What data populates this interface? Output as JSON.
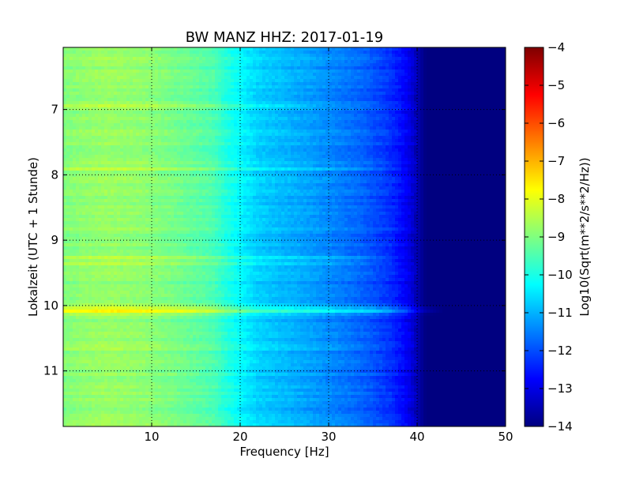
{
  "chart_data": {
    "type": "heatmap",
    "title": "BW MANZ HHZ: 2017-01-19",
    "xlabel": "Frequency [Hz]",
    "ylabel": "Lokalzeit (UTC + 1 Stunde)",
    "colorbar_label": "Log10(Sqrt(m**2/s**2/Hz))",
    "xlim": [
      0,
      50
    ],
    "ylim": [
      6.05,
      11.85
    ],
    "y_inverted": true,
    "x_ticks": [
      10,
      20,
      30,
      40,
      50
    ],
    "x_tick_labels": [
      "10",
      "20",
      "30",
      "40",
      "50"
    ],
    "y_ticks": [
      7,
      8,
      9,
      10,
      11
    ],
    "y_tick_labels": [
      "7",
      "8",
      "9",
      "10",
      "11"
    ],
    "clim": [
      -14,
      -4
    ],
    "colorbar_ticks": [
      -4,
      -5,
      -6,
      -7,
      -8,
      -9,
      -10,
      -11,
      -12,
      -13,
      -14
    ],
    "colorbar_tick_labels": [
      "−4",
      "−5",
      "−6",
      "−7",
      "−8",
      "−9",
      "−10",
      "−11",
      "−12",
      "−13",
      "−14"
    ],
    "colormap": "jet",
    "grid": true,
    "spectrum_profile": {
      "frequency_hz": [
        0,
        2,
        5,
        9,
        12,
        15,
        17,
        18,
        20,
        22,
        25,
        28,
        31,
        34,
        37,
        39,
        40,
        41,
        50
      ],
      "log10_amplitude": [
        -9.0,
        -8.85,
        -8.75,
        -8.85,
        -9.05,
        -9.3,
        -9.5,
        -9.8,
        -10.3,
        -10.7,
        -10.95,
        -11.2,
        -11.5,
        -11.8,
        -12.3,
        -12.9,
        -13.5,
        -14.0,
        -14.0
      ]
    },
    "energy_bursts": [
      {
        "time_h": 10.07,
        "width_h": 0.045,
        "delta": 1.3,
        "fmax_hz": 43
      },
      {
        "time_h": 9.28,
        "width_h": 0.03,
        "delta": 0.6,
        "fmax_hz": 39
      },
      {
        "time_h": 7.9,
        "width_h": 0.025,
        "delta": 0.45,
        "fmax_hz": 39
      },
      {
        "time_h": 10.65,
        "width_h": 0.02,
        "delta": 0.45,
        "fmax_hz": 39
      },
      {
        "time_h": 9.35,
        "width_h": 0.02,
        "delta": 0.35,
        "fmax_hz": 36
      },
      {
        "time_h": 6.95,
        "width_h": 0.02,
        "delta": 0.3,
        "fmax_hz": 30
      },
      {
        "time_h": 8.7,
        "width_h": 0.015,
        "delta": 0.3,
        "fmax_hz": 30
      }
    ]
  }
}
